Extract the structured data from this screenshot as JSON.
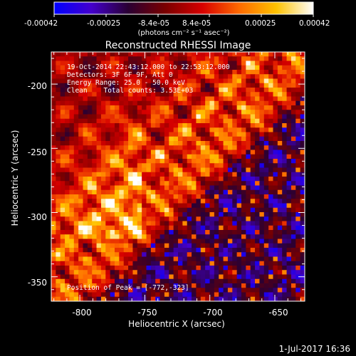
{
  "colorbar": {
    "tick_labels": [
      "-0.00042",
      "-0.00025",
      "-8.4e-05",
      "8.4e-05",
      "0.00025",
      "0.00042"
    ],
    "unit": "(photons cm⁻² s⁻¹ asec⁻²)",
    "stops": [
      "#0000ff",
      "#4400cc",
      "#2a0033",
      "#7a0000",
      "#d60000",
      "#ff6a00",
      "#ffc200",
      "#ffffff"
    ]
  },
  "image": {
    "title": "Reconstructed RHESSI Image",
    "info_lines": [
      "19-Oct-2014 22:43:12.000 to 22:53:12.000",
      "Detectors: 3F 6F 9F, Att 0",
      "Energy Range: 25.0 - 50.0 keV",
      "Clean    Total counts: 3.53E+03"
    ],
    "peak_label": "Position of Peak = [-772,-323]",
    "x_axis_label": "Heliocentric X (arcsec)",
    "y_axis_label": "Heliocentric Y (arcsec)",
    "x_ticks": [
      "-800",
      "-750",
      "-700",
      "-650"
    ],
    "y_ticks": [
      "-200",
      "-250",
      "-300",
      "-350"
    ],
    "x_tick_values": [
      -800,
      -750,
      -700,
      -650
    ],
    "y_tick_values": [
      -200,
      -250,
      -300,
      -350
    ],
    "x_range": [
      -822,
      -627
    ],
    "y_range": [
      -369,
      -175
    ]
  },
  "footer": {
    "timestamp": "1-Jul-2017 16:36"
  }
}
